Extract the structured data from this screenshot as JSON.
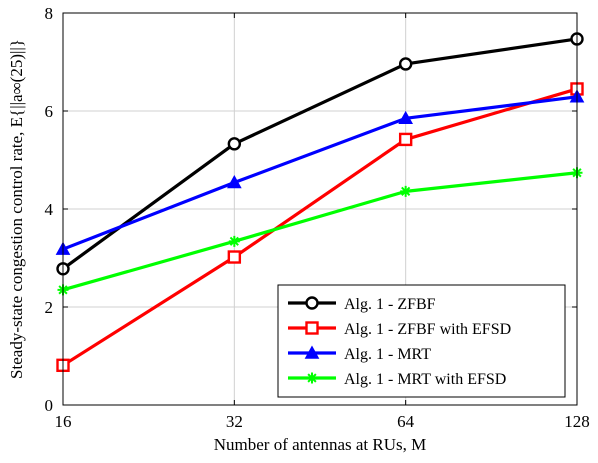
{
  "chart_data": {
    "type": "line",
    "title": "",
    "xlabel": "Number of antennas at RUs, M",
    "ylabel": "Steady-state congestion control rate, E{||a∞(25)||}",
    "x": [
      16,
      32,
      64,
      128
    ],
    "x_tick_labels": [
      "16",
      "32",
      "64",
      "128"
    ],
    "x_scale": "log2",
    "ylim": [
      0,
      8
    ],
    "y_ticks": [
      0,
      2,
      4,
      6,
      8
    ],
    "y_tick_labels": [
      "0",
      "2",
      "4",
      "6",
      "8"
    ],
    "grid": true,
    "legend_position": "bottom-right",
    "series": [
      {
        "name": "Alg. 1 - ZFBF",
        "color": "#000000",
        "marker": "circle",
        "values": [
          2.78,
          5.33,
          6.96,
          7.47
        ]
      },
      {
        "name": "Alg. 1 - ZFBF with EFSD",
        "color": "#ff0000",
        "marker": "square",
        "values": [
          0.81,
          3.02,
          5.42,
          6.45
        ]
      },
      {
        "name": "Alg. 1 - MRT",
        "color": "#0000ff",
        "marker": "triangle",
        "values": [
          3.18,
          4.54,
          5.85,
          6.29
        ]
      },
      {
        "name": "Alg. 1 - MRT with EFSD",
        "color": "#00ff00",
        "marker": "star",
        "values": [
          2.35,
          3.34,
          4.36,
          4.74
        ]
      }
    ]
  }
}
